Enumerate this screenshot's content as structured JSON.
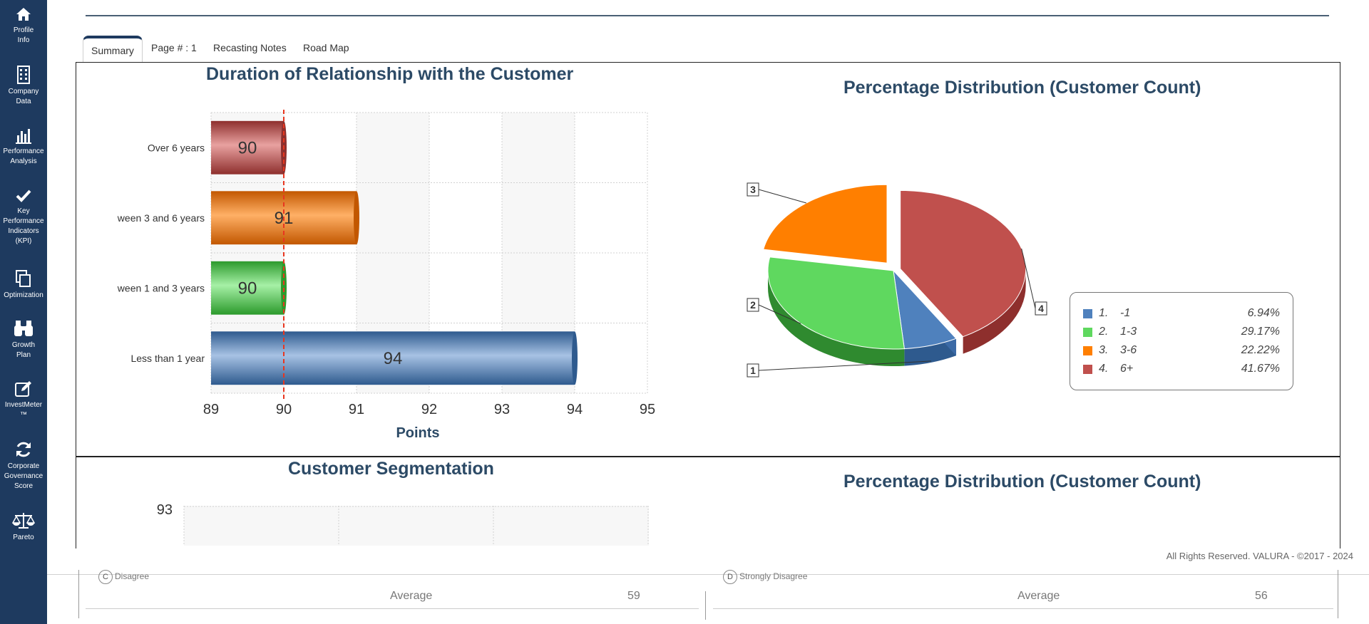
{
  "colors": {
    "sidebar_bg": "#1e3a5f",
    "title_color": "#2c4a66",
    "blue": "#4f81bd",
    "green": "#5fd85f",
    "orange": "#ff7f00",
    "red": "#c0504d",
    "target_line": "#e8361f"
  },
  "sidebar": {
    "items": [
      {
        "label": "Profile\nInfo",
        "icon": "home-icon"
      },
      {
        "label": "Company\nData",
        "icon": "building-icon"
      },
      {
        "label": "Performance\nAnalysis",
        "icon": "bar-chart-icon"
      },
      {
        "label": "Key\nPerformance\nIndicators\n(KPI)",
        "icon": "check-icon"
      },
      {
        "label": "Optimization",
        "icon": "copy-icon"
      },
      {
        "label": "Growth\nPlan",
        "icon": "binoculars-icon"
      },
      {
        "label": "InvestMeter\n™",
        "icon": "edit-icon"
      },
      {
        "label": "Corporate\nGovernance\nScore",
        "icon": "refresh-icon"
      },
      {
        "label": "Pareto",
        "icon": "scale-icon"
      }
    ]
  },
  "tabs": [
    {
      "label": "Summary",
      "active": true
    },
    {
      "label": "Page # : 1",
      "active": false
    },
    {
      "label": "Recasting Notes",
      "active": false
    },
    {
      "label": "Road Map",
      "active": false
    }
  ],
  "panels": {
    "duration_title": "Duration of Relationship with the Customer",
    "pie_title": "Percentage Distribution (Customer Count)",
    "segmentation_title": "Customer Segmentation",
    "pie_title_2": "Percentage Distribution (Customer Count)"
  },
  "chart_data": [
    {
      "type": "bar",
      "orientation": "horizontal",
      "title": "Duration of Relationship with the Customer",
      "categories": [
        "Over 6 years",
        "ween 3 and 6 years",
        "ween 1 and 3 years",
        "Less than 1 year"
      ],
      "values": [
        90,
        91,
        90,
        94
      ],
      "data_labels": [
        "90",
        "91",
        "90",
        "94"
      ],
      "colors": [
        "#c0504d",
        "#ff7f00",
        "#5fd85f",
        "#4f81bd"
      ],
      "xlabel": "Points",
      "xlim": [
        89,
        95
      ],
      "ticks": [
        "89",
        "90",
        "91",
        "92",
        "93",
        "94",
        "95"
      ],
      "reference_line": 90,
      "grid": true
    },
    {
      "type": "pie",
      "title": "Percentage Distribution (Customer Count)",
      "slices": [
        {
          "id": "1",
          "name": "-1",
          "value": 6.94,
          "pct": "6.94%",
          "color": "#4f81bd"
        },
        {
          "id": "2",
          "name": "1-3",
          "value": 29.17,
          "pct": "29.17%",
          "color": "#5fd85f"
        },
        {
          "id": "3",
          "name": "3-6",
          "value": 22.22,
          "pct": "22.22%",
          "color": "#ff7f00"
        },
        {
          "id": "4",
          "name": "6+",
          "value": 41.67,
          "pct": "41.67%",
          "color": "#c0504d"
        }
      ],
      "legend_position": "right",
      "style": "3d"
    },
    {
      "type": "bar",
      "title": "Customer Segmentation",
      "ticks": [
        "93"
      ],
      "grid": true
    }
  ],
  "footer": {
    "copyright": "All Rights Reserved. VALURA - ©2017 - 2024"
  },
  "bottom": {
    "left_option": {
      "letter": "C",
      "label": "Disagree"
    },
    "right_option": {
      "letter": "D",
      "label": "Strongly Disagree"
    },
    "left_avg_label": "Average",
    "left_avg_value": "59",
    "right_avg_label": "Average",
    "right_avg_value": "56"
  }
}
